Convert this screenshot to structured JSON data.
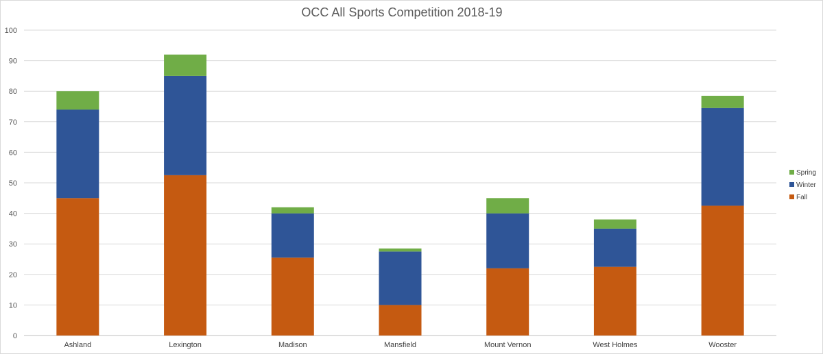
{
  "chart_data": {
    "type": "bar",
    "stacked": true,
    "title": "OCC All Sports Competition 2018-19",
    "xlabel": "",
    "ylabel": "",
    "ylim": [
      0,
      100
    ],
    "yticks": [
      "0",
      "10",
      "20",
      "30",
      "40",
      "50",
      "60",
      "70",
      "80",
      "90",
      "100"
    ],
    "grid": true,
    "legend_position": "right",
    "categories": [
      "Ashland",
      "Lexington",
      "Madison",
      "Mansfield",
      "Mount Vernon",
      "West Holmes",
      "Wooster"
    ],
    "series": [
      {
        "name": "Fall",
        "color": "#C55A11",
        "values": [
          45,
          52.5,
          25.5,
          10,
          22,
          22.5,
          42.5
        ]
      },
      {
        "name": "Winter",
        "color": "#2F5597",
        "values": [
          29,
          32.5,
          14.5,
          17.5,
          18,
          12.5,
          32
        ]
      },
      {
        "name": "Spring",
        "color": "#70AD47",
        "values": [
          6,
          7,
          2,
          1,
          5,
          3,
          4
        ]
      }
    ],
    "legend_order": [
      "Spring",
      "Winter",
      "Fall"
    ],
    "colors": {
      "grid": "#d9d9d9",
      "axis": "#bfbfbf",
      "text": "#595959"
    }
  }
}
